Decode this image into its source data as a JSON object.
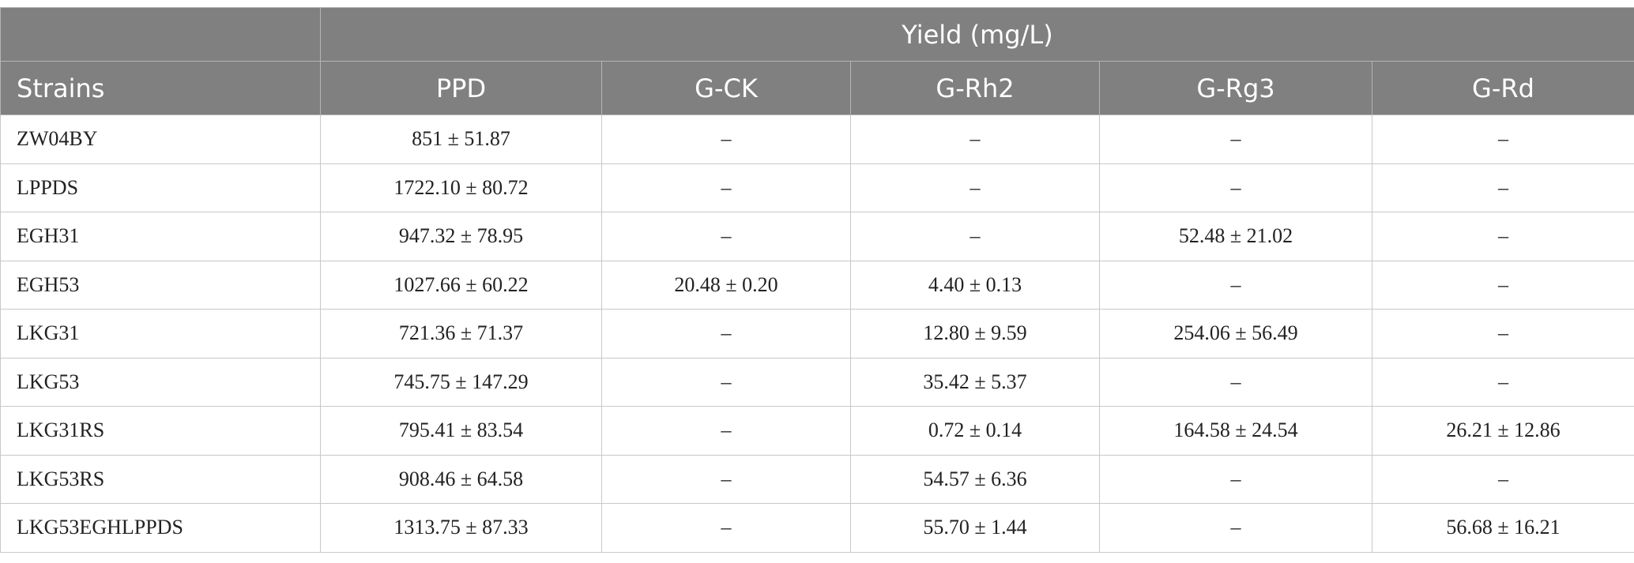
{
  "table": {
    "group_header": "Yield (mg/L)",
    "columns": [
      "Strains",
      "PPD",
      "G-CK",
      "G-Rh2",
      "G-Rg3",
      "G-Rd"
    ],
    "rows": [
      [
        "ZW04BY",
        "851 ± 51.87",
        "–",
        "–",
        "–",
        "–"
      ],
      [
        "LPPDS",
        "1722.10 ± 80.72",
        "–",
        "–",
        "–",
        "–"
      ],
      [
        "EGH31",
        "947.32 ± 78.95",
        "–",
        "–",
        "52.48 ± 21.02",
        "–"
      ],
      [
        "EGH53",
        "1027.66 ± 60.22",
        "20.48 ± 0.20",
        "4.40 ± 0.13",
        "–",
        "–"
      ],
      [
        "LKG31",
        "721.36 ± 71.37",
        "–",
        "12.80 ± 9.59",
        "254.06 ± 56.49",
        "–"
      ],
      [
        "LKG53",
        "745.75 ± 147.29",
        "–",
        "35.42 ± 5.37",
        "–",
        "–"
      ],
      [
        "LKG31RS",
        "795.41 ± 83.54",
        "–",
        "0.72 ± 0.14",
        "164.58 ± 24.54",
        "26.21 ± 12.86"
      ],
      [
        "LKG53RS",
        "908.46 ± 64.58",
        "–",
        "54.57 ± 6.36",
        "–",
        "–"
      ],
      [
        "LKG53EGHLPPDS",
        "1313.75 ± 87.33",
        "–",
        "55.70 ± 1.44",
        "–",
        "56.68 ± 16.21"
      ]
    ]
  }
}
